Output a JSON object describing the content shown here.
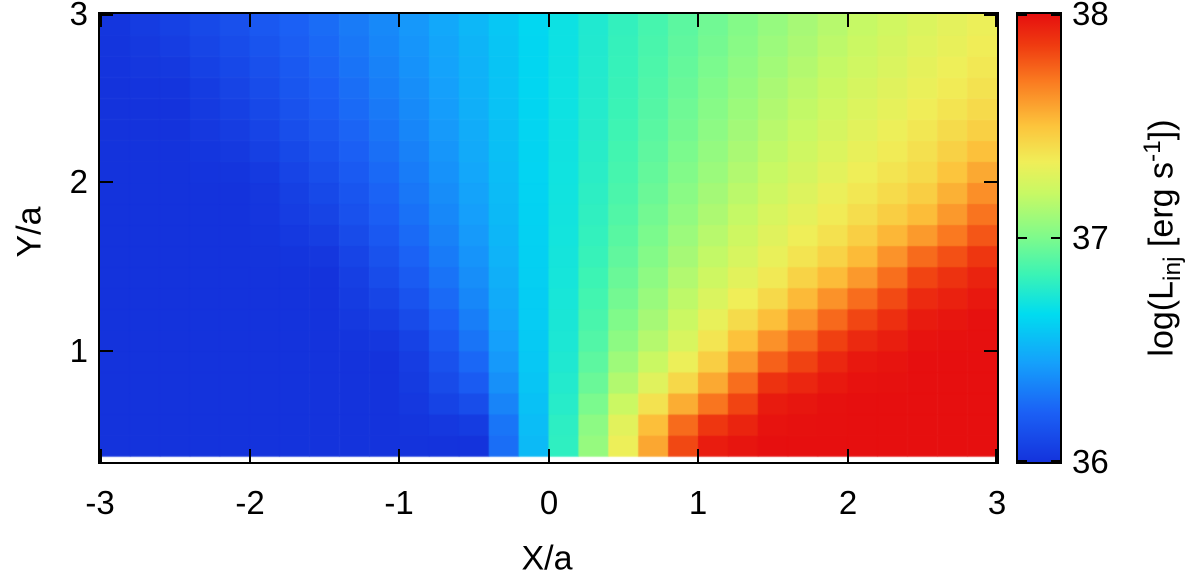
{
  "chart_data": {
    "type": "heatmap",
    "title": "",
    "x_label": "X/a",
    "y_label": "Y/a",
    "x_range": [
      -3,
      3
    ],
    "y_range": [
      0.34,
      3
    ],
    "x_ticks": [
      -3,
      -2,
      -1,
      0,
      1,
      2,
      3
    ],
    "y_ticks": [
      1,
      2,
      3
    ],
    "colorbar": {
      "range": [
        36,
        38
      ],
      "ticks": [
        36,
        37,
        38
      ],
      "label_plain": "log(L_inj [erg s^-1])",
      "label_parts": {
        "prefix": "log(L",
        "sub": "inj",
        "mid": " [erg s",
        "sup": "-1",
        "suffix": "])"
      }
    },
    "palette_stops": [
      [
        0,
        "#1433dc"
      ],
      [
        0.11,
        "#1b60f5"
      ],
      [
        0.22,
        "#15a0fb"
      ],
      [
        0.33,
        "#00dcf0"
      ],
      [
        0.42,
        "#3cf4b4"
      ],
      [
        0.5,
        "#7dfa8c"
      ],
      [
        0.6,
        "#c8f964"
      ],
      [
        0.67,
        "#f0ee58"
      ],
      [
        0.75,
        "#fcc43c"
      ],
      [
        0.85,
        "#fa7a20"
      ],
      [
        0.93,
        "#ef3b10"
      ],
      [
        1,
        "#e60f0f"
      ]
    ],
    "grid": {
      "x_samples": [
        -3,
        -2.5,
        -2,
        -1.5,
        -1,
        -0.5,
        0,
        0.5,
        1,
        1.5,
        2,
        2.5,
        3
      ],
      "y_samples": [
        0.5,
        0.75,
        1,
        1.25,
        1.5,
        1.75,
        2,
        2.25,
        2.5,
        2.75,
        3
      ],
      "values": [
        [
          36.0,
          36.0,
          36.0,
          36.0,
          36.0,
          36.0,
          36.67,
          37.33,
          37.95,
          38.0,
          38.0,
          38.0,
          38.0
        ],
        [
          36.0,
          36.0,
          36.0,
          36.0,
          36.0,
          36.17,
          36.67,
          37.17,
          37.55,
          37.95,
          38.0,
          38.0,
          38.0
        ],
        [
          36.0,
          36.0,
          36.0,
          36.0,
          36.0,
          36.27,
          36.67,
          37.06,
          37.33,
          37.7,
          37.95,
          38.0,
          38.0
        ],
        [
          36.0,
          36.0,
          36.0,
          36.0,
          36.09,
          36.34,
          36.67,
          36.99,
          37.24,
          37.45,
          37.75,
          37.95,
          38.0
        ],
        [
          36.0,
          36.0,
          36.0,
          36.0,
          36.17,
          36.39,
          36.67,
          36.94,
          37.17,
          37.33,
          37.5,
          37.8,
          37.95
        ],
        [
          36.0,
          36.0,
          36.0,
          36.07,
          36.23,
          36.43,
          36.67,
          36.9,
          37.11,
          37.27,
          37.39,
          37.55,
          37.8
        ],
        [
          36.0,
          36.0,
          36.0,
          36.12,
          36.27,
          36.46,
          36.67,
          36.87,
          37.06,
          37.21,
          37.33,
          37.43,
          37.65
        ],
        [
          36.0,
          36.0,
          36.05,
          36.17,
          36.31,
          36.48,
          36.67,
          36.85,
          37.02,
          37.17,
          37.28,
          37.38,
          37.5
        ],
        [
          36.0,
          36.0,
          36.09,
          36.21,
          36.34,
          36.5,
          36.67,
          36.83,
          36.99,
          37.13,
          37.24,
          37.33,
          37.41
        ],
        [
          36.0,
          36.04,
          36.13,
          36.24,
          36.37,
          36.51,
          36.67,
          36.82,
          36.96,
          37.09,
          37.2,
          37.29,
          37.37
        ],
        [
          36.0,
          36.08,
          36.17,
          36.27,
          36.39,
          36.53,
          36.67,
          36.81,
          36.94,
          37.06,
          37.17,
          37.26,
          37.33
        ]
      ]
    },
    "render_cells": {
      "nx": 30,
      "ny": 21,
      "x_min": -3,
      "x_max": 3,
      "y_min": 0.375,
      "y_max": 3.0
    }
  }
}
